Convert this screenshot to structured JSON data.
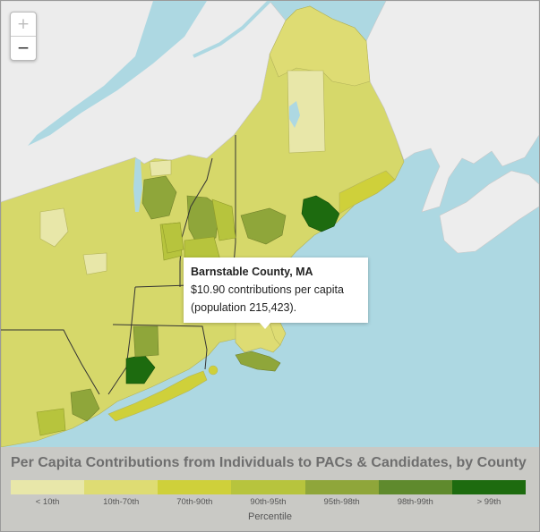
{
  "map": {
    "zoom_in_label": "+",
    "zoom_out_label": "−",
    "water_color": "#add8e2"
  },
  "tooltip": {
    "title": "Barnstable County, MA",
    "line1": "$10.90 contributions per capita",
    "line2": "(population 215,423)."
  },
  "legend": {
    "title": "Per Capita Contributions from Individuals to PACs & Candidates, by County",
    "axis_label": "Percentile",
    "bins": [
      {
        "label": "< 10th",
        "color": "#e8e7a9"
      },
      {
        "label": "10th-70th",
        "color": "#dedc73"
      },
      {
        "label": "70th-90th",
        "color": "#cfd03a"
      },
      {
        "label": "90th-95th",
        "color": "#b7c43d"
      },
      {
        "label": "95th-98th",
        "color": "#8fa63a"
      },
      {
        "label": "98th-99th",
        "color": "#5f8a2d"
      },
      {
        "label": "> 99th",
        "color": "#1d6b0f"
      }
    ]
  }
}
